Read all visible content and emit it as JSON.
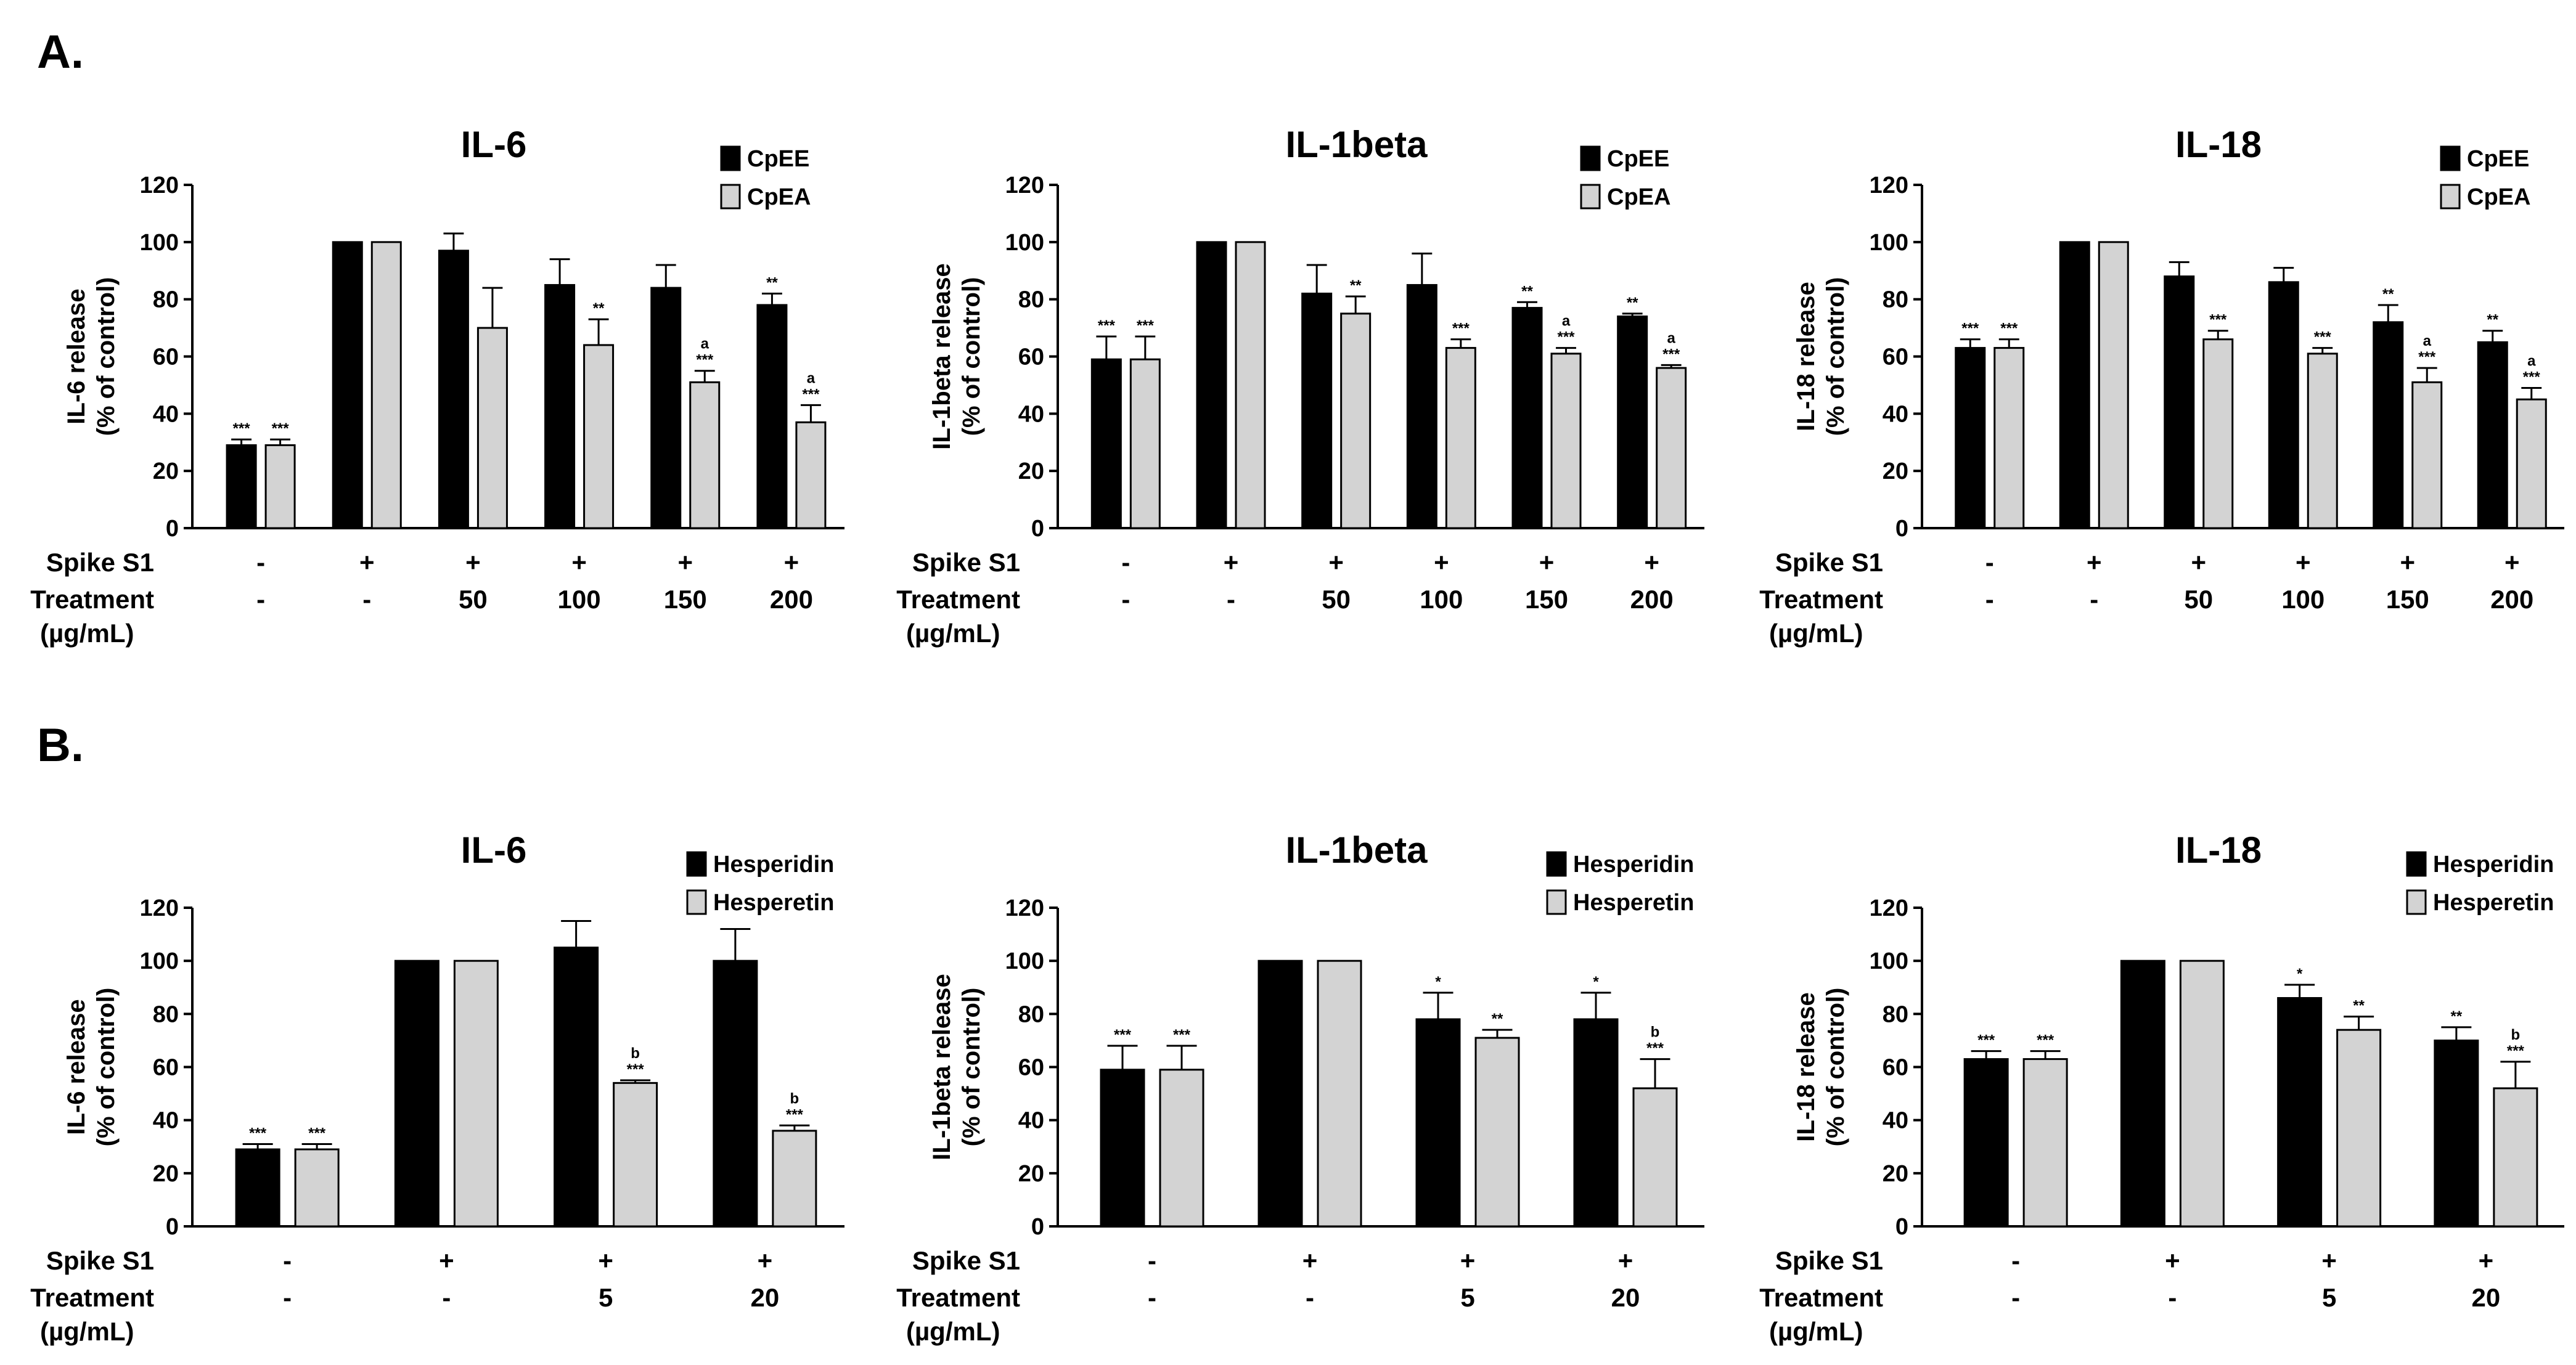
{
  "panel_labels": {
    "a": "A.",
    "b": "B."
  },
  "colors": {
    "series1": "#000000",
    "series2": "#d3d3d3",
    "axis": "#000000"
  },
  "labels": {
    "spike": "Spike S1",
    "treatment": "Treatment",
    "unit": "(µg/mL)"
  },
  "chart_data": [
    {
      "type": "bar",
      "panel": "A",
      "title": "IL-6",
      "ylabel": [
        "IL-6 release",
        "(% of control)"
      ],
      "ylim": [
        0,
        120
      ],
      "yticks": [
        0,
        20,
        40,
        60,
        80,
        100,
        120
      ],
      "legend": {
        "placement": "top-right"
      },
      "groups": [
        {
          "spike": "-",
          "treatment": "-"
        },
        {
          "spike": "+",
          "treatment": "-"
        },
        {
          "spike": "+",
          "treatment": "50"
        },
        {
          "spike": "+",
          "treatment": "100"
        },
        {
          "spike": "+",
          "treatment": "150"
        },
        {
          "spike": "+",
          "treatment": "200"
        }
      ],
      "series": [
        {
          "name": "CpEE",
          "values": [
            29,
            100,
            97,
            85,
            84,
            78
          ],
          "errors": [
            2,
            0,
            6,
            9,
            8,
            4
          ],
          "annotations": [
            "***",
            "",
            "",
            "",
            "",
            "**"
          ]
        },
        {
          "name": "CpEA",
          "values": [
            29,
            100,
            70,
            64,
            51,
            37
          ],
          "errors": [
            2,
            0,
            14,
            9,
            4,
            6
          ],
          "annotations": [
            "***",
            "",
            "",
            "**",
            "a\n***",
            "a\n***"
          ]
        }
      ]
    },
    {
      "type": "bar",
      "panel": "A",
      "title": "IL-1beta",
      "ylabel": [
        "IL-1beta release",
        "(% of control)"
      ],
      "ylim": [
        0,
        120
      ],
      "yticks": [
        0,
        20,
        40,
        60,
        80,
        100,
        120
      ],
      "legend": {
        "placement": "top-right"
      },
      "groups": [
        {
          "spike": "-",
          "treatment": "-"
        },
        {
          "spike": "+",
          "treatment": "-"
        },
        {
          "spike": "+",
          "treatment": "50"
        },
        {
          "spike": "+",
          "treatment": "100"
        },
        {
          "spike": "+",
          "treatment": "150"
        },
        {
          "spike": "+",
          "treatment": "200"
        }
      ],
      "series": [
        {
          "name": "CpEE",
          "values": [
            59,
            100,
            82,
            85,
            77,
            74
          ],
          "errors": [
            8,
            0,
            10,
            11,
            2,
            1
          ],
          "annotations": [
            "***",
            "",
            "",
            "",
            "**",
            "**"
          ]
        },
        {
          "name": "CpEA",
          "values": [
            59,
            100,
            75,
            63,
            61,
            56
          ],
          "errors": [
            8,
            0,
            6,
            3,
            2,
            1
          ],
          "annotations": [
            "***",
            "",
            "**",
            "***",
            "a\n***",
            "a\n***"
          ]
        }
      ]
    },
    {
      "type": "bar",
      "panel": "A",
      "title": "IL-18",
      "ylabel": [
        "IL-18 release",
        "(% of control)"
      ],
      "ylim": [
        0,
        120
      ],
      "yticks": [
        0,
        20,
        40,
        60,
        80,
        100,
        120
      ],
      "legend": {
        "placement": "top-right"
      },
      "groups": [
        {
          "spike": "-",
          "treatment": "-"
        },
        {
          "spike": "+",
          "treatment": "-"
        },
        {
          "spike": "+",
          "treatment": "50"
        },
        {
          "spike": "+",
          "treatment": "100"
        },
        {
          "spike": "+",
          "treatment": "150"
        },
        {
          "spike": "+",
          "treatment": "200"
        }
      ],
      "series": [
        {
          "name": "CpEE",
          "values": [
            63,
            100,
            88,
            86,
            72,
            65
          ],
          "errors": [
            3,
            0,
            5,
            5,
            6,
            4
          ],
          "annotations": [
            "***",
            "",
            "",
            "",
            "**",
            "**"
          ]
        },
        {
          "name": "CpEA",
          "values": [
            63,
            100,
            66,
            61,
            51,
            45
          ],
          "errors": [
            3,
            0,
            3,
            2,
            5,
            4
          ],
          "annotations": [
            "***",
            "",
            "***",
            "***",
            "a\n***",
            "a\n***"
          ]
        }
      ]
    },
    {
      "type": "bar",
      "panel": "B",
      "title": "IL-6",
      "ylabel": [
        "IL-6 release",
        "(% of control)"
      ],
      "ylim": [
        0,
        120
      ],
      "yticks": [
        0,
        20,
        40,
        60,
        80,
        100,
        120
      ],
      "legend": {
        "placement": "top-right"
      },
      "groups": [
        {
          "spike": "-",
          "treatment": "-"
        },
        {
          "spike": "+",
          "treatment": "-"
        },
        {
          "spike": "+",
          "treatment": "5"
        },
        {
          "spike": "+",
          "treatment": "20"
        }
      ],
      "series": [
        {
          "name": "Hesperidin",
          "values": [
            29,
            100,
            105,
            100
          ],
          "errors": [
            2,
            0,
            10,
            12
          ],
          "annotations": [
            "***",
            "",
            "",
            ""
          ]
        },
        {
          "name": "Hesperetin",
          "values": [
            29,
            100,
            54,
            36
          ],
          "errors": [
            2,
            0,
            1,
            2
          ],
          "annotations": [
            "***",
            "",
            "b\n***",
            "b\n***"
          ]
        }
      ]
    },
    {
      "type": "bar",
      "panel": "B",
      "title": "IL-1beta",
      "ylabel": [
        "IL-1beta release",
        "(% of control)"
      ],
      "ylim": [
        0,
        120
      ],
      "yticks": [
        0,
        20,
        40,
        60,
        80,
        100,
        120
      ],
      "legend": {
        "placement": "top-right"
      },
      "groups": [
        {
          "spike": "-",
          "treatment": "-"
        },
        {
          "spike": "+",
          "treatment": "-"
        },
        {
          "spike": "+",
          "treatment": "5"
        },
        {
          "spike": "+",
          "treatment": "20"
        }
      ],
      "series": [
        {
          "name": "Hesperidin",
          "values": [
            59,
            100,
            78,
            78
          ],
          "errors": [
            9,
            0,
            10,
            10
          ],
          "annotations": [
            "***",
            "",
            "*",
            "*"
          ]
        },
        {
          "name": "Hesperetin",
          "values": [
            59,
            100,
            71,
            52
          ],
          "errors": [
            9,
            0,
            3,
            11
          ],
          "annotations": [
            "***",
            "",
            "**",
            "b\n***"
          ]
        }
      ]
    },
    {
      "type": "bar",
      "panel": "B",
      "title": "IL-18",
      "ylabel": [
        "IL-18 release",
        "(% of control)"
      ],
      "ylim": [
        0,
        120
      ],
      "yticks": [
        0,
        20,
        40,
        60,
        80,
        100,
        120
      ],
      "legend": {
        "placement": "top-right"
      },
      "groups": [
        {
          "spike": "-",
          "treatment": "-"
        },
        {
          "spike": "+",
          "treatment": "-"
        },
        {
          "spike": "+",
          "treatment": "5"
        },
        {
          "spike": "+",
          "treatment": "20"
        }
      ],
      "series": [
        {
          "name": "Hesperidin",
          "values": [
            63,
            100,
            86,
            70
          ],
          "errors": [
            3,
            0,
            5,
            5
          ],
          "annotations": [
            "***",
            "",
            "*",
            "**"
          ]
        },
        {
          "name": "Hesperetin",
          "values": [
            63,
            100,
            74,
            52
          ],
          "errors": [
            3,
            0,
            5,
            10
          ],
          "annotations": [
            "***",
            "",
            "**",
            "b\n***"
          ]
        }
      ]
    }
  ]
}
